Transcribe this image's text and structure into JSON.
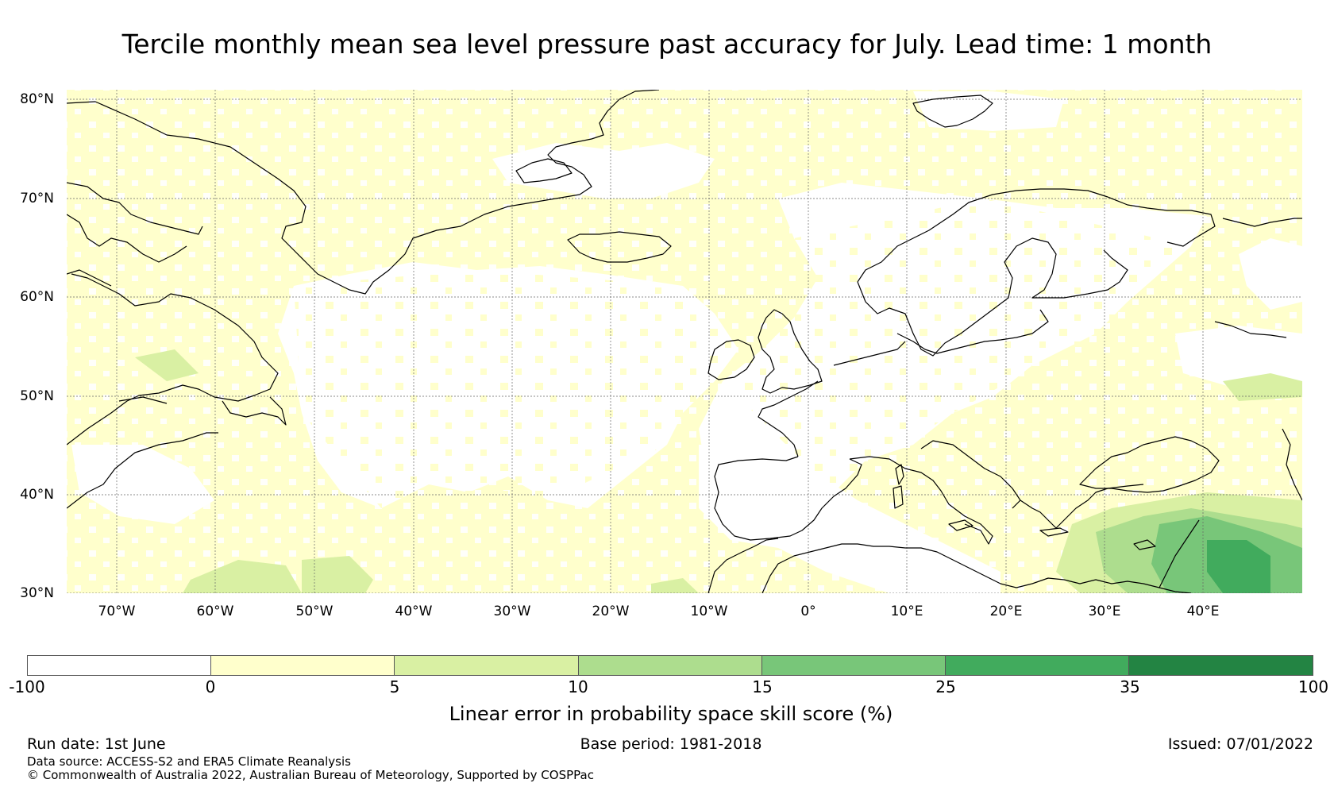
{
  "title": "Tercile monthly mean sea level pressure past accuracy for July. Lead time: 1 month",
  "map": {
    "lat_labels": [
      "80°N",
      "70°N",
      "60°N",
      "50°N",
      "40°N",
      "30°N"
    ],
    "lon_labels": [
      "70°W",
      "60°W",
      "50°W",
      "40°W",
      "30°W",
      "20°W",
      "10°W",
      "0°",
      "10°E",
      "20°E",
      "30°E",
      "40°E"
    ],
    "lon_range": [
      -75,
      50
    ],
    "lat_range": [
      30,
      81
    ],
    "gridlines": true,
    "coastlines": true
  },
  "colorbar": {
    "ticks": [
      "-100",
      "0",
      "5",
      "10",
      "15",
      "25",
      "35",
      "100"
    ],
    "colors": [
      "#ffffff",
      "#ffffcc",
      "#d9f0a3",
      "#addd8e",
      "#78c679",
      "#41ab5d",
      "#238443"
    ],
    "label": "Linear error in probability space skill score (%)"
  },
  "footer": {
    "run_date": "Run date: 1st June",
    "base_period": "Base period: 1981-2018",
    "issued": "Issued: 07/01/2022",
    "data_source": "Data source: ACCESS-S2 and ERA5 Climate Reanalysis",
    "copyright": "© Commonwealth of Australia 2022, Australian Bureau of Meteorology, Supported by COSPPac"
  }
}
